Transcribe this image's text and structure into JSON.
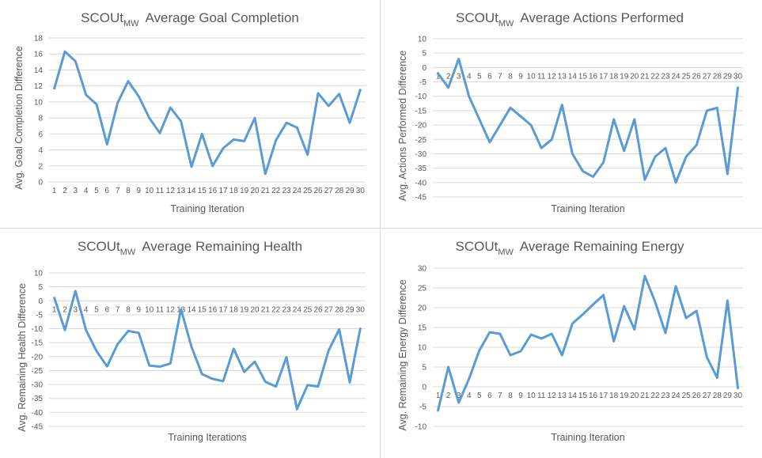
{
  "chart_data": [
    {
      "type": "line",
      "title_main": "SCOUt",
      "title_sub": "MW",
      "title_rest": "Average Goal Completion",
      "xlabel": "Training Iteration",
      "ylabel": "Avg. Goal Completion Difference",
      "ylim": [
        0,
        18
      ],
      "ystep": 2,
      "grid": true,
      "x": [
        1,
        2,
        3,
        4,
        5,
        6,
        7,
        8,
        9,
        10,
        11,
        12,
        13,
        14,
        15,
        16,
        17,
        18,
        19,
        20,
        21,
        22,
        23,
        24,
        25,
        26,
        27,
        28,
        29,
        30
      ],
      "series": [
        {
          "values": [
            11.7,
            16.3,
            15.1,
            10.9,
            9.7,
            4.7,
            9.9,
            12.6,
            10.7,
            8,
            6.1,
            9.3,
            7.6,
            1.9,
            6,
            2,
            4.2,
            5.3,
            5.1,
            8,
            1,
            5.2,
            7.4,
            6.8,
            3.4,
            11.1,
            9.5,
            11,
            7.4,
            11.5
          ]
        }
      ]
    },
    {
      "type": "line",
      "title_main": "SCOUt",
      "title_sub": "MW",
      "title_rest": "Average Actions Performed",
      "xlabel": "Training Iteration",
      "ylabel": "Avg. Actions Performed Difference",
      "ylim": [
        -45,
        10
      ],
      "ystep": 5,
      "grid": true,
      "x": [
        1,
        2,
        3,
        4,
        5,
        6,
        7,
        8,
        9,
        10,
        11,
        12,
        13,
        14,
        15,
        16,
        17,
        18,
        19,
        20,
        21,
        22,
        23,
        24,
        25,
        26,
        27,
        28,
        29,
        30
      ],
      "series": [
        {
          "values": [
            -2,
            -7,
            3,
            -10,
            -18,
            -26,
            -20,
            -14,
            -17,
            -20,
            -28,
            -25,
            -13,
            -30,
            -36,
            -38,
            -33,
            -18,
            -29,
            -18,
            -39,
            -31,
            -28,
            -40,
            -31,
            -27,
            -15,
            -14,
            -37,
            -7
          ]
        }
      ]
    },
    {
      "type": "line",
      "title_main": "SCOUt",
      "title_sub": "MW",
      "title_rest": "Average Remaining Health",
      "xlabel": "Training Iterations",
      "ylabel": "Avg. Remaining Health Difference",
      "ylim": [
        -45,
        10
      ],
      "ystep": 5,
      "grid": true,
      "x": [
        1,
        2,
        3,
        4,
        5,
        6,
        7,
        8,
        9,
        10,
        11,
        12,
        13,
        14,
        15,
        16,
        17,
        18,
        19,
        20,
        21,
        22,
        23,
        24,
        25,
        26,
        27,
        28,
        29,
        30
      ],
      "series": [
        {
          "values": [
            1,
            -10.5,
            3.5,
            -10.5,
            -18,
            -23.5,
            -15.5,
            -10.8,
            -11.5,
            -23.2,
            -23.6,
            -22.5,
            -3,
            -16.5,
            -26.3,
            -28,
            -28.8,
            -17.2,
            -25.5,
            -21.8,
            -29,
            -30.7,
            -20.2,
            -38.8,
            -30.2,
            -30.7,
            -17.8,
            -10.2,
            -29.2,
            -10
          ]
        }
      ]
    },
    {
      "type": "line",
      "title_main": "SCOUt",
      "title_sub": "MW",
      "title_rest": "Average Remaining Energy",
      "xlabel": "Training Iteration",
      "ylabel": "Avg. Remaining Energy Difference",
      "ylim": [
        -10,
        30
      ],
      "ystep": 5,
      "grid": true,
      "x": [
        1,
        2,
        3,
        4,
        5,
        6,
        7,
        8,
        9,
        10,
        11,
        12,
        13,
        14,
        15,
        16,
        17,
        18,
        19,
        20,
        21,
        22,
        23,
        24,
        25,
        26,
        27,
        28,
        29,
        30
      ],
      "series": [
        {
          "values": [
            -6,
            5,
            -4,
            2,
            9.2,
            13.8,
            13.4,
            8,
            9,
            13.2,
            12.2,
            13.4,
            8,
            16,
            18.3,
            20.8,
            23.2,
            11.5,
            20.4,
            14.5,
            28,
            21.5,
            13.6,
            25.4,
            17.4,
            19.2,
            7.5,
            2.3,
            21.8,
            -0.3
          ]
        }
      ]
    }
  ]
}
